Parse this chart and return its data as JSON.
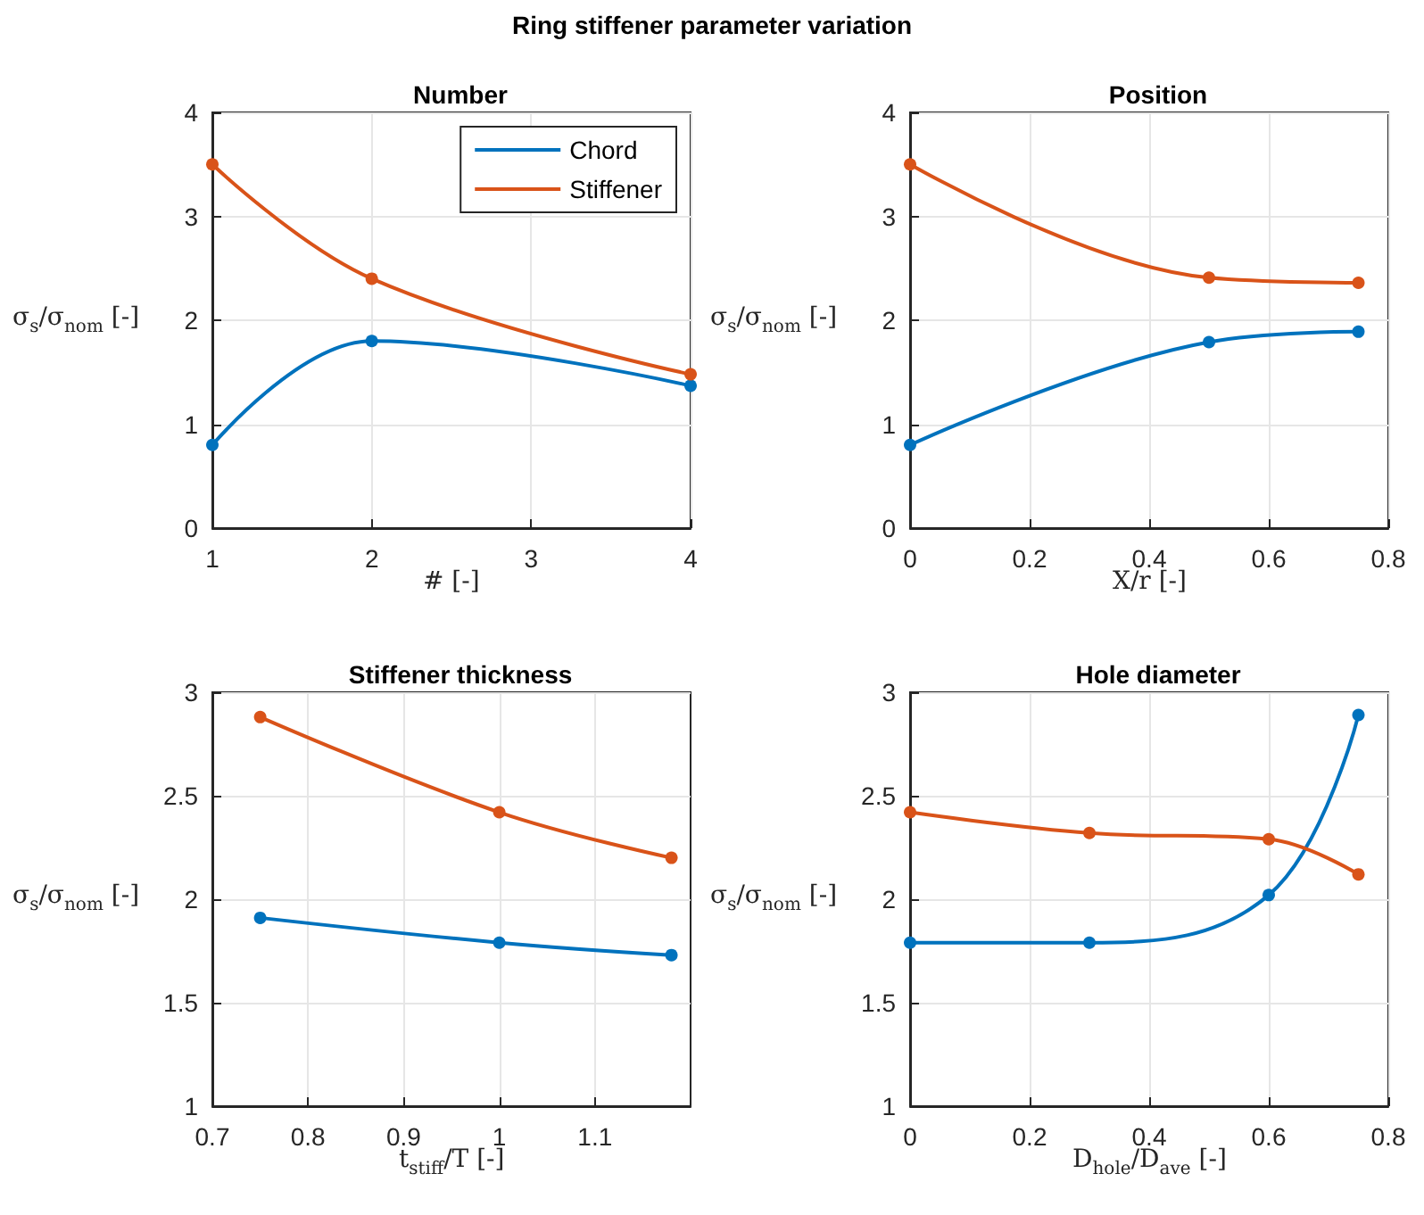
{
  "chart_data": [
    {
      "type": "line",
      "title": "Number",
      "annotations": [
        "Ring stiffener parameter variation"
      ],
      "xlabel": "# [-]",
      "ylabel": "σ$_{s}$/σ$_{nom}$ [-]",
      "xlim": [
        1,
        4
      ],
      "xticks": [
        1,
        2,
        3,
        4
      ],
      "ylim": [
        0,
        4
      ],
      "yticks": [
        0,
        1,
        2,
        3,
        4
      ],
      "grid": true,
      "legend": "top right",
      "marker": "circle",
      "line_style": "solid",
      "series": [
        {
          "name": "Chord",
          "color": "#0072bd",
          "x": [
            1,
            2,
            4
          ],
          "values": [
            0.8,
            1.8,
            1.37
          ]
        },
        {
          "name": "Stiffener",
          "color": "#d95319",
          "x": [
            1,
            2,
            4
          ],
          "values": [
            3.5,
            2.4,
            1.48
          ]
        }
      ]
    },
    {
      "type": "line",
      "title": "Position",
      "xlabel": "X/r [-]",
      "ylabel": "σ$_{s}$/σ$_{nom}$ [-]",
      "xlim": [
        0,
        0.8
      ],
      "xticks": [
        0,
        0.2,
        0.4,
        0.6,
        0.8
      ],
      "ylim": [
        0,
        4
      ],
      "yticks": [
        0,
        1,
        2,
        3,
        4
      ],
      "grid": true,
      "marker": "circle",
      "line_style": "solid",
      "series": [
        {
          "color": "#0072bd",
          "x": [
            0,
            0.5,
            0.75
          ],
          "values": [
            0.8,
            1.79,
            1.89
          ]
        },
        {
          "color": "#d95319",
          "x": [
            0,
            0.5,
            0.75
          ],
          "values": [
            3.5,
            2.41,
            2.36
          ]
        }
      ]
    },
    {
      "type": "line",
      "title": "Stiffener thickness",
      "xlabel": "t$_{stiff}$/T [-]",
      "ylabel": "σ$_{s}$/σ$_{nom}$ [-]",
      "xlim": [
        0.7,
        1.2
      ],
      "xticks": [
        0.7,
        0.8,
        0.9,
        1,
        1.1
      ],
      "ylim": [
        1,
        3
      ],
      "yticks": [
        1,
        1.5,
        2,
        2.5,
        3
      ],
      "grid": true,
      "marker": "circle",
      "line_style": "solid",
      "series": [
        {
          "color": "#0072bd",
          "x": [
            0.75,
            1,
            1.18
          ],
          "values": [
            1.91,
            1.79,
            1.73
          ]
        },
        {
          "color": "#d95319",
          "x": [
            0.75,
            1,
            1.18
          ],
          "values": [
            2.88,
            2.42,
            2.2
          ]
        }
      ]
    },
    {
      "type": "line",
      "title": "Hole diameter",
      "xlabel": "D$_{hole}$/D$_{ave}$ [-]",
      "ylabel": "σ$_{s}$/σ$_{nom}$ [-]",
      "xlim": [
        0,
        0.8
      ],
      "xticks": [
        0,
        0.2,
        0.4,
        0.6,
        0.8
      ],
      "ylim": [
        1,
        3
      ],
      "yticks": [
        1,
        1.5,
        2,
        2.5,
        3
      ],
      "grid": true,
      "marker": "circle",
      "line_style": "solid",
      "series": [
        {
          "color": "#0072bd",
          "x": [
            0,
            0.3,
            0.6,
            0.75
          ],
          "values": [
            1.79,
            1.79,
            2.02,
            2.89
          ]
        },
        {
          "color": "#d95319",
          "x": [
            0,
            0.3,
            0.6,
            0.75
          ],
          "values": [
            2.42,
            2.32,
            2.29,
            2.12
          ]
        }
      ]
    }
  ]
}
